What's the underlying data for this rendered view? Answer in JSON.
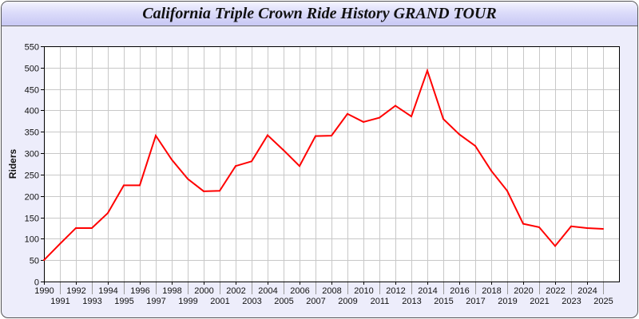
{
  "window": {
    "title": "California Triple Crown Ride History GRAND TOUR"
  },
  "chart_data": {
    "type": "line",
    "title": "California Triple Crown Ride History GRAND TOUR",
    "xlabel": "",
    "ylabel": "Riders",
    "ylim": [
      0,
      550
    ],
    "yticks": [
      0,
      50,
      100,
      150,
      200,
      250,
      300,
      350,
      400,
      450,
      500,
      550
    ],
    "xlim": [
      1990,
      2026
    ],
    "grid": true,
    "line_color": "#ff0000",
    "x": [
      1990,
      1991,
      1992,
      1993,
      1994,
      1995,
      1996,
      1997,
      1998,
      1999,
      2000,
      2001,
      2002,
      2003,
      2004,
      2005,
      2006,
      2007,
      2008,
      2009,
      2010,
      2011,
      2012,
      2013,
      2014,
      2015,
      2016,
      2017,
      2018,
      2019,
      2020,
      2021,
      2022,
      2023,
      2024,
      2025
    ],
    "series": [
      {
        "values": [
          50,
          88,
          125,
          125,
          160,
          225,
          225,
          341,
          285,
          240,
          211,
          212,
          270,
          281,
          342,
          307,
          270,
          340,
          341,
          392,
          373,
          383,
          411,
          386,
          493,
          380,
          344,
          317,
          259,
          212,
          135,
          127,
          83,
          129,
          125,
          123
        ]
      }
    ]
  }
}
